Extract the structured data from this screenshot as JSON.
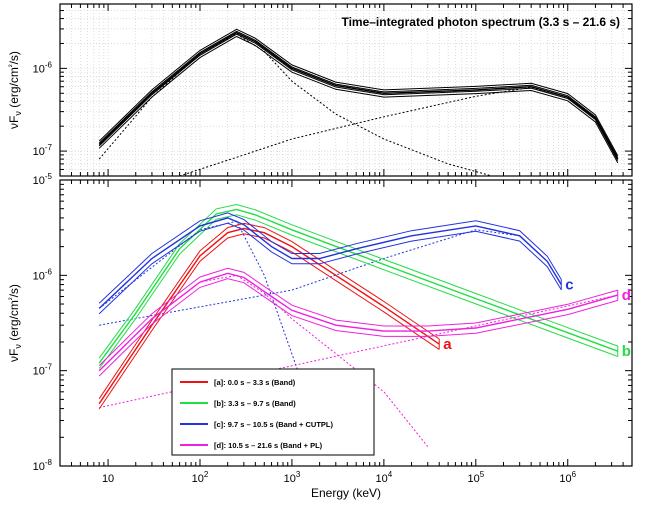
{
  "figure": {
    "xlabel": "Energy (keV)",
    "xticks": [
      {
        "v": 10,
        "base": "10",
        "exp": ""
      },
      {
        "v": 100,
        "base": "10",
        "exp": "2"
      },
      {
        "v": 1000,
        "base": "10",
        "exp": "3"
      },
      {
        "v": 10000,
        "base": "10",
        "exp": "4"
      },
      {
        "v": 100000,
        "base": "10",
        "exp": "5"
      },
      {
        "v": 1000000,
        "base": "10",
        "exp": "6"
      }
    ]
  },
  "chart_data": [
    {
      "type": "line",
      "panel": "top",
      "title": "Time–integrated photon spectrum (3.3 s – 21.6 s)",
      "ylabel": "νFν (erg/cm²/s)",
      "xscale": "log",
      "yscale": "log",
      "xlim": [
        3,
        5000000
      ],
      "ylim": [
        5e-08,
        6e-06
      ],
      "grid": true,
      "yticks": [
        {
          "v": 1e-06,
          "base": "10",
          "exp": "-6"
        },
        {
          "v": 1e-07,
          "base": "10",
          "exp": "-7"
        }
      ],
      "series": [
        {
          "name": "",
          "color": "#000000",
          "style": "band",
          "x": [
            8,
            30,
            100,
            250,
            400,
            1000,
            3000,
            10000,
            100000,
            400000,
            1000000,
            2000000,
            3500000
          ],
          "y": [
            1.2e-07,
            5e-07,
            1.5e-06,
            2.7e-06,
            2.1e-06,
            1e-06,
            6.2e-07,
            5e-07,
            5.5e-07,
            6e-07,
            4.5e-07,
            2.5e-07,
            8e-08
          ]
        },
        {
          "name": "",
          "color": "#000000",
          "style": "dotted",
          "x": [
            8,
            30,
            100,
            250,
            500,
            1000,
            3000,
            10000,
            50000,
            150000
          ],
          "y": [
            8e-08,
            4.5e-07,
            1.5e-06,
            2.6e-06,
            1.6e-06,
            7e-07,
            2.8e-07,
            1.4e-07,
            7e-08,
            5e-08
          ]
        },
        {
          "name": "",
          "color": "#000000",
          "style": "dotted",
          "x": [
            60,
            300,
            1000,
            10000,
            100000,
            400000,
            1000000,
            2000000,
            3500000
          ],
          "y": [
            5e-08,
            9e-08,
            1.4e-07,
            2.6e-07,
            4.6e-07,
            5.9e-07,
            4.5e-07,
            2.5e-07,
            8e-08
          ]
        }
      ]
    },
    {
      "type": "line",
      "panel": "bottom",
      "ylabel": "νFν (erg/cm²/s)",
      "xscale": "log",
      "yscale": "log",
      "xlim": [
        3,
        5000000
      ],
      "ylim": [
        1e-08,
        1e-05
      ],
      "grid": false,
      "legend_position": "bottom-left",
      "yticks": [
        {
          "v": 1e-05,
          "base": "10",
          "exp": "-5"
        },
        {
          "v": 1e-06,
          "base": "10",
          "exp": "-6"
        },
        {
          "v": 1e-07,
          "base": "10",
          "exp": "-7"
        },
        {
          "v": 1e-08,
          "base": "10",
          "exp": "-8"
        }
      ],
      "series": [
        {
          "name": "[a]: 0.0 s – 3.3 s (Band)",
          "tag": "a",
          "color": "#ee1111",
          "x": [
            8,
            30,
            100,
            200,
            300,
            500,
            1000,
            3000,
            10000,
            40000
          ],
          "y": [
            4.5e-08,
            3e-07,
            1.6e-06,
            2.8e-06,
            3.1e-06,
            2.8e-06,
            2e-06,
            1e-06,
            4.7e-07,
            1.9e-07
          ]
        },
        {
          "name": "[b]: 3.3 s – 9.7 s (Band)",
          "tag": "b",
          "color": "#22dd44",
          "x": [
            8,
            20,
            60,
            150,
            250,
            400,
            1000,
            10000,
            100000,
            1000000,
            3500000
          ],
          "y": [
            1.2e-07,
            4e-07,
            1.9e-06,
            4.4e-06,
            4.9e-06,
            4.3e-06,
            3e-06,
            1.3e-06,
            5.7e-07,
            2.5e-07,
            1.6e-07
          ]
        },
        {
          "name": "[c]: 9.7 s – 10.5 s (Band + CUTPL)",
          "tag": "c",
          "color": "#2233dd",
          "x": [
            8,
            30,
            100,
            200,
            300,
            600,
            1000,
            2000,
            5000,
            20000,
            100000,
            300000,
            600000,
            850000
          ],
          "y": [
            4.5e-07,
            1.5e-06,
            3.3e-06,
            4e-06,
            3.4e-06,
            2e-06,
            1.5e-06,
            1.5e-06,
            1.9e-06,
            2.6e-06,
            3.3e-06,
            2.6e-06,
            1.4e-06,
            8e-07
          ]
        },
        {
          "name": "[d]: 10.5 s – 21.6 s (Band + PL)",
          "tag": "d",
          "color": "#ee22dd",
          "x": [
            8,
            30,
            100,
            200,
            300,
            600,
            1000,
            3000,
            10000,
            30000,
            100000,
            1000000,
            3500000
          ],
          "y": [
            1e-07,
            3.5e-07,
            8.5e-07,
            1.05e-06,
            9.5e-07,
            6e-07,
            4.3e-07,
            3e-07,
            2.6e-07,
            2.6e-07,
            2.8e-07,
            4.4e-07,
            6.2e-07
          ]
        }
      ],
      "components": [
        {
          "color": "#2233dd",
          "x": [
            8,
            100,
            250,
            500,
            1000,
            1500
          ],
          "y": [
            4.5e-07,
            3e-06,
            3.7e-06,
            1e-06,
            1.5e-07,
            5e-08
          ]
        },
        {
          "color": "#2233dd",
          "x": [
            8,
            1000,
            10000,
            100000,
            300000,
            600000,
            850000
          ],
          "y": [
            3e-07,
            7e-07,
            1.5e-06,
            3e-06,
            2.6e-06,
            1.4e-06,
            8e-07
          ]
        },
        {
          "color": "#ee22dd",
          "x": [
            8,
            30,
            100,
            250,
            500,
            1000,
            10000,
            30000
          ],
          "y": [
            1e-07,
            3.5e-07,
            8.5e-07,
            1e-06,
            6.5e-07,
            3.5e-07,
            6e-08,
            1.6e-08
          ]
        },
        {
          "color": "#ee22dd",
          "x": [
            8,
            3500000
          ],
          "y": [
            4.1e-08,
            6.2e-07
          ]
        }
      ]
    }
  ]
}
